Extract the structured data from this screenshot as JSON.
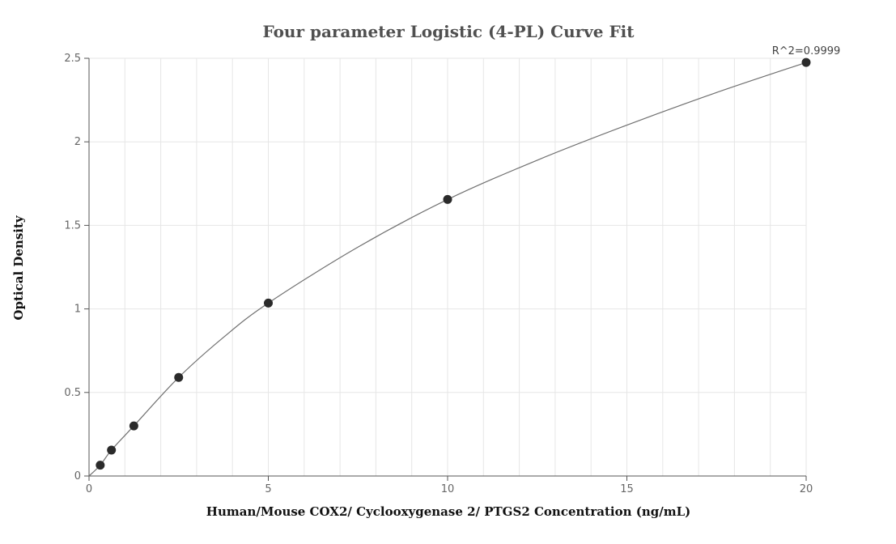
{
  "chart_data": {
    "type": "scatter",
    "title": "Four parameter Logistic (4-PL) Curve Fit",
    "xlabel": "Human/Mouse COX2/ Cyclooxygenase 2/ PTGS2 Concentration (ng/mL)",
    "ylabel": "Optical Density",
    "xlim": [
      0,
      20
    ],
    "ylim": [
      0,
      2.5
    ],
    "x_ticks": [
      0,
      5,
      10,
      15,
      20
    ],
    "y_ticks": [
      0,
      0.5,
      1,
      1.5,
      2,
      2.5
    ],
    "x_tick_labels": [
      "0",
      "5",
      "10",
      "15",
      "20"
    ],
    "y_tick_labels": [
      "0",
      "0.5",
      "1",
      "1.5",
      "2",
      "2.5"
    ],
    "grid": true,
    "series": [
      {
        "x": [
          0.3125,
          0.625,
          1.25,
          2.5,
          5,
          10,
          20
        ],
        "y": [
          0.065,
          0.155,
          0.3,
          0.59,
          1.035,
          1.655,
          2.475
        ]
      }
    ],
    "fit_curve": {
      "model": "4PL",
      "x": [
        0,
        0.3125,
        0.625,
        1.25,
        2.5,
        3.75,
        5,
        7.5,
        10,
        12.5,
        15,
        17.5,
        20
      ],
      "y": [
        0,
        0.065,
        0.155,
        0.3,
        0.59,
        0.83,
        1.035,
        1.37,
        1.655,
        1.89,
        2.1,
        2.295,
        2.475
      ]
    },
    "annotations": [
      "R^2=0.9999"
    ],
    "colors": {
      "point": "#2a2a2a",
      "curve": "#707070",
      "grid": "#e6e6e6",
      "axis": "#555555"
    }
  }
}
